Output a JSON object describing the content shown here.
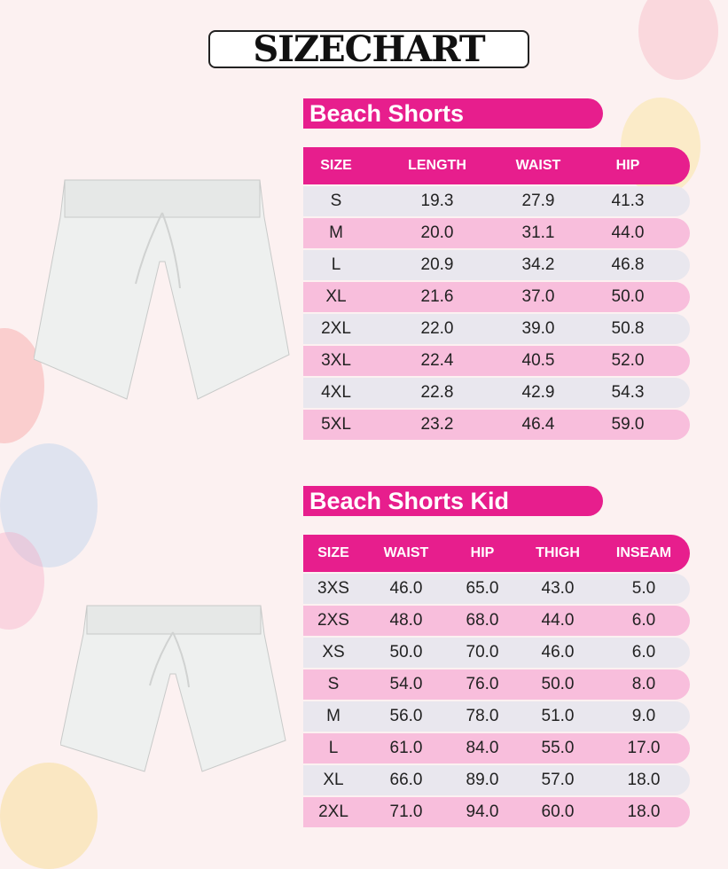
{
  "title": "SIZECHART",
  "colors": {
    "accent": "#e71e8d",
    "row_light": "#e9e7ee",
    "row_pink": "#f8bedc",
    "background": "#fcf1f1"
  },
  "adult": {
    "heading": "Beach Shorts",
    "columns": [
      "SIZE",
      "LENGTH",
      "WAIST",
      "HIP"
    ],
    "rows": [
      [
        "S",
        "19.3",
        "27.9",
        "41.3"
      ],
      [
        "M",
        "20.0",
        "31.1",
        "44.0"
      ],
      [
        "L",
        "20.9",
        "34.2",
        "46.8"
      ],
      [
        "XL",
        "21.6",
        "37.0",
        "50.0"
      ],
      [
        "2XL",
        "22.0",
        "39.0",
        "50.8"
      ],
      [
        "3XL",
        "22.4",
        "40.5",
        "52.0"
      ],
      [
        "4XL",
        "22.8",
        "42.9",
        "54.3"
      ],
      [
        "5XL",
        "23.2",
        "46.4",
        "59.0"
      ]
    ]
  },
  "kid": {
    "heading": "Beach Shorts Kid",
    "columns": [
      "SIZE",
      "WAIST",
      "HIP",
      "THIGH",
      "INSEAM"
    ],
    "rows": [
      [
        "3XS",
        "46.0",
        "65.0",
        "43.0",
        "5.0"
      ],
      [
        "2XS",
        "48.0",
        "68.0",
        "44.0",
        "6.0"
      ],
      [
        "XS",
        "50.0",
        "70.0",
        "46.0",
        "6.0"
      ],
      [
        "S",
        "54.0",
        "76.0",
        "50.0",
        "8.0"
      ],
      [
        "M",
        "56.0",
        "78.0",
        "51.0",
        "9.0"
      ],
      [
        "L",
        "61.0",
        "84.0",
        "55.0",
        "17.0"
      ],
      [
        "XL",
        "66.0",
        "89.0",
        "57.0",
        "18.0"
      ],
      [
        "2XL",
        "71.0",
        "94.0",
        "60.0",
        "18.0"
      ]
    ]
  }
}
